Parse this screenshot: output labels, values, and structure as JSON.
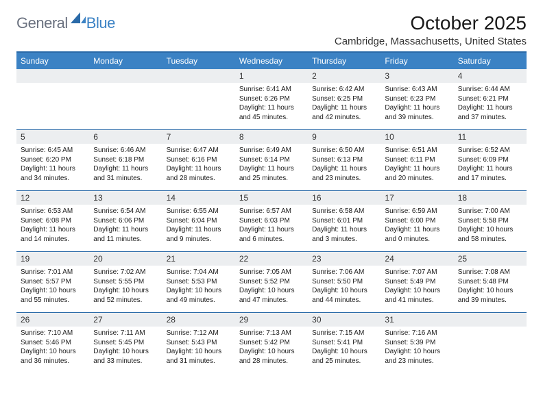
{
  "brand": {
    "word1": "General",
    "word2": "Blue"
  },
  "colors": {
    "brand_blue": "#3b82c4",
    "header_rule": "#2a6aa8",
    "daynum_bg": "#eceef0",
    "text": "#1a1a1a",
    "logo_gray": "#6b7280"
  },
  "title": "October 2025",
  "location": "Cambridge, Massachusetts, United States",
  "weekdays": [
    "Sunday",
    "Monday",
    "Tuesday",
    "Wednesday",
    "Thursday",
    "Friday",
    "Saturday"
  ],
  "weeks": [
    [
      {
        "n": "",
        "sr": "",
        "ss": "",
        "dl": ""
      },
      {
        "n": "",
        "sr": "",
        "ss": "",
        "dl": ""
      },
      {
        "n": "",
        "sr": "",
        "ss": "",
        "dl": ""
      },
      {
        "n": "1",
        "sr": "Sunrise: 6:41 AM",
        "ss": "Sunset: 6:26 PM",
        "dl": "Daylight: 11 hours and 45 minutes."
      },
      {
        "n": "2",
        "sr": "Sunrise: 6:42 AM",
        "ss": "Sunset: 6:25 PM",
        "dl": "Daylight: 11 hours and 42 minutes."
      },
      {
        "n": "3",
        "sr": "Sunrise: 6:43 AM",
        "ss": "Sunset: 6:23 PM",
        "dl": "Daylight: 11 hours and 39 minutes."
      },
      {
        "n": "4",
        "sr": "Sunrise: 6:44 AM",
        "ss": "Sunset: 6:21 PM",
        "dl": "Daylight: 11 hours and 37 minutes."
      }
    ],
    [
      {
        "n": "5",
        "sr": "Sunrise: 6:45 AM",
        "ss": "Sunset: 6:20 PM",
        "dl": "Daylight: 11 hours and 34 minutes."
      },
      {
        "n": "6",
        "sr": "Sunrise: 6:46 AM",
        "ss": "Sunset: 6:18 PM",
        "dl": "Daylight: 11 hours and 31 minutes."
      },
      {
        "n": "7",
        "sr": "Sunrise: 6:47 AM",
        "ss": "Sunset: 6:16 PM",
        "dl": "Daylight: 11 hours and 28 minutes."
      },
      {
        "n": "8",
        "sr": "Sunrise: 6:49 AM",
        "ss": "Sunset: 6:14 PM",
        "dl": "Daylight: 11 hours and 25 minutes."
      },
      {
        "n": "9",
        "sr": "Sunrise: 6:50 AM",
        "ss": "Sunset: 6:13 PM",
        "dl": "Daylight: 11 hours and 23 minutes."
      },
      {
        "n": "10",
        "sr": "Sunrise: 6:51 AM",
        "ss": "Sunset: 6:11 PM",
        "dl": "Daylight: 11 hours and 20 minutes."
      },
      {
        "n": "11",
        "sr": "Sunrise: 6:52 AM",
        "ss": "Sunset: 6:09 PM",
        "dl": "Daylight: 11 hours and 17 minutes."
      }
    ],
    [
      {
        "n": "12",
        "sr": "Sunrise: 6:53 AM",
        "ss": "Sunset: 6:08 PM",
        "dl": "Daylight: 11 hours and 14 minutes."
      },
      {
        "n": "13",
        "sr": "Sunrise: 6:54 AM",
        "ss": "Sunset: 6:06 PM",
        "dl": "Daylight: 11 hours and 11 minutes."
      },
      {
        "n": "14",
        "sr": "Sunrise: 6:55 AM",
        "ss": "Sunset: 6:04 PM",
        "dl": "Daylight: 11 hours and 9 minutes."
      },
      {
        "n": "15",
        "sr": "Sunrise: 6:57 AM",
        "ss": "Sunset: 6:03 PM",
        "dl": "Daylight: 11 hours and 6 minutes."
      },
      {
        "n": "16",
        "sr": "Sunrise: 6:58 AM",
        "ss": "Sunset: 6:01 PM",
        "dl": "Daylight: 11 hours and 3 minutes."
      },
      {
        "n": "17",
        "sr": "Sunrise: 6:59 AM",
        "ss": "Sunset: 6:00 PM",
        "dl": "Daylight: 11 hours and 0 minutes."
      },
      {
        "n": "18",
        "sr": "Sunrise: 7:00 AM",
        "ss": "Sunset: 5:58 PM",
        "dl": "Daylight: 10 hours and 58 minutes."
      }
    ],
    [
      {
        "n": "19",
        "sr": "Sunrise: 7:01 AM",
        "ss": "Sunset: 5:57 PM",
        "dl": "Daylight: 10 hours and 55 minutes."
      },
      {
        "n": "20",
        "sr": "Sunrise: 7:02 AM",
        "ss": "Sunset: 5:55 PM",
        "dl": "Daylight: 10 hours and 52 minutes."
      },
      {
        "n": "21",
        "sr": "Sunrise: 7:04 AM",
        "ss": "Sunset: 5:53 PM",
        "dl": "Daylight: 10 hours and 49 minutes."
      },
      {
        "n": "22",
        "sr": "Sunrise: 7:05 AM",
        "ss": "Sunset: 5:52 PM",
        "dl": "Daylight: 10 hours and 47 minutes."
      },
      {
        "n": "23",
        "sr": "Sunrise: 7:06 AM",
        "ss": "Sunset: 5:50 PM",
        "dl": "Daylight: 10 hours and 44 minutes."
      },
      {
        "n": "24",
        "sr": "Sunrise: 7:07 AM",
        "ss": "Sunset: 5:49 PM",
        "dl": "Daylight: 10 hours and 41 minutes."
      },
      {
        "n": "25",
        "sr": "Sunrise: 7:08 AM",
        "ss": "Sunset: 5:48 PM",
        "dl": "Daylight: 10 hours and 39 minutes."
      }
    ],
    [
      {
        "n": "26",
        "sr": "Sunrise: 7:10 AM",
        "ss": "Sunset: 5:46 PM",
        "dl": "Daylight: 10 hours and 36 minutes."
      },
      {
        "n": "27",
        "sr": "Sunrise: 7:11 AM",
        "ss": "Sunset: 5:45 PM",
        "dl": "Daylight: 10 hours and 33 minutes."
      },
      {
        "n": "28",
        "sr": "Sunrise: 7:12 AM",
        "ss": "Sunset: 5:43 PM",
        "dl": "Daylight: 10 hours and 31 minutes."
      },
      {
        "n": "29",
        "sr": "Sunrise: 7:13 AM",
        "ss": "Sunset: 5:42 PM",
        "dl": "Daylight: 10 hours and 28 minutes."
      },
      {
        "n": "30",
        "sr": "Sunrise: 7:15 AM",
        "ss": "Sunset: 5:41 PM",
        "dl": "Daylight: 10 hours and 25 minutes."
      },
      {
        "n": "31",
        "sr": "Sunrise: 7:16 AM",
        "ss": "Sunset: 5:39 PM",
        "dl": "Daylight: 10 hours and 23 minutes."
      },
      {
        "n": "",
        "sr": "",
        "ss": "",
        "dl": ""
      }
    ]
  ]
}
